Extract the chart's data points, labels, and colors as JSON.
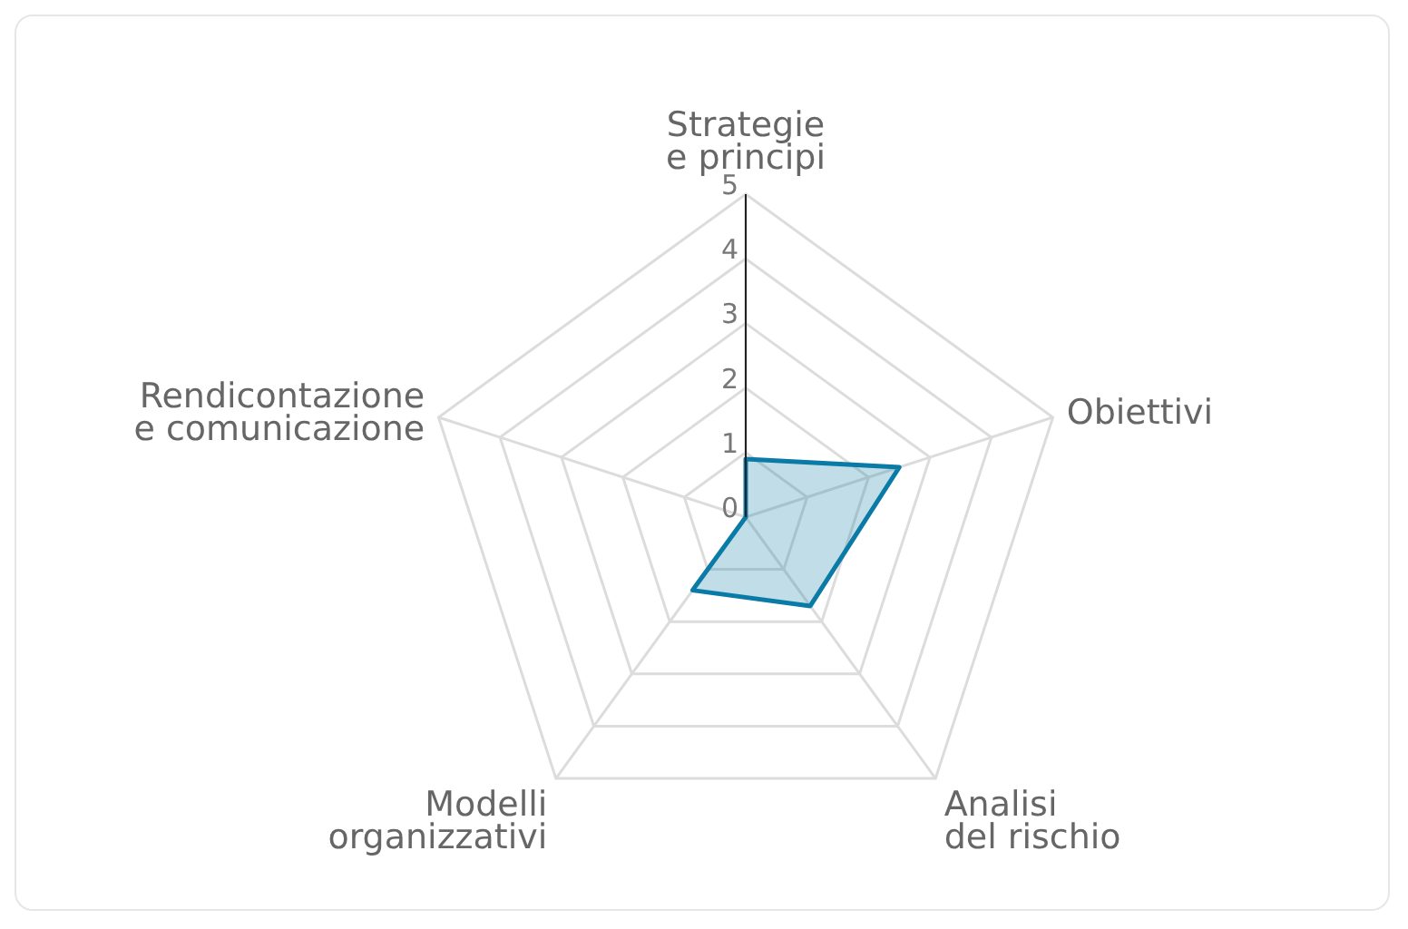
{
  "chart_data": {
    "type": "radar",
    "categories": [
      "Strategie e principi",
      "Obiettivi",
      "Analisi del rischio",
      "Modelli organizzativi",
      "Rendicontazione e comunicazione"
    ],
    "series": [
      {
        "color": "#0a7ba6",
        "values": [
          0.9,
          2.5,
          1.7,
          1.4,
          0
        ]
      }
    ],
    "ylim": [
      0,
      5
    ],
    "yticks": [
      0,
      1,
      2,
      3,
      4,
      5
    ],
    "grid": true,
    "marker": "none"
  }
}
